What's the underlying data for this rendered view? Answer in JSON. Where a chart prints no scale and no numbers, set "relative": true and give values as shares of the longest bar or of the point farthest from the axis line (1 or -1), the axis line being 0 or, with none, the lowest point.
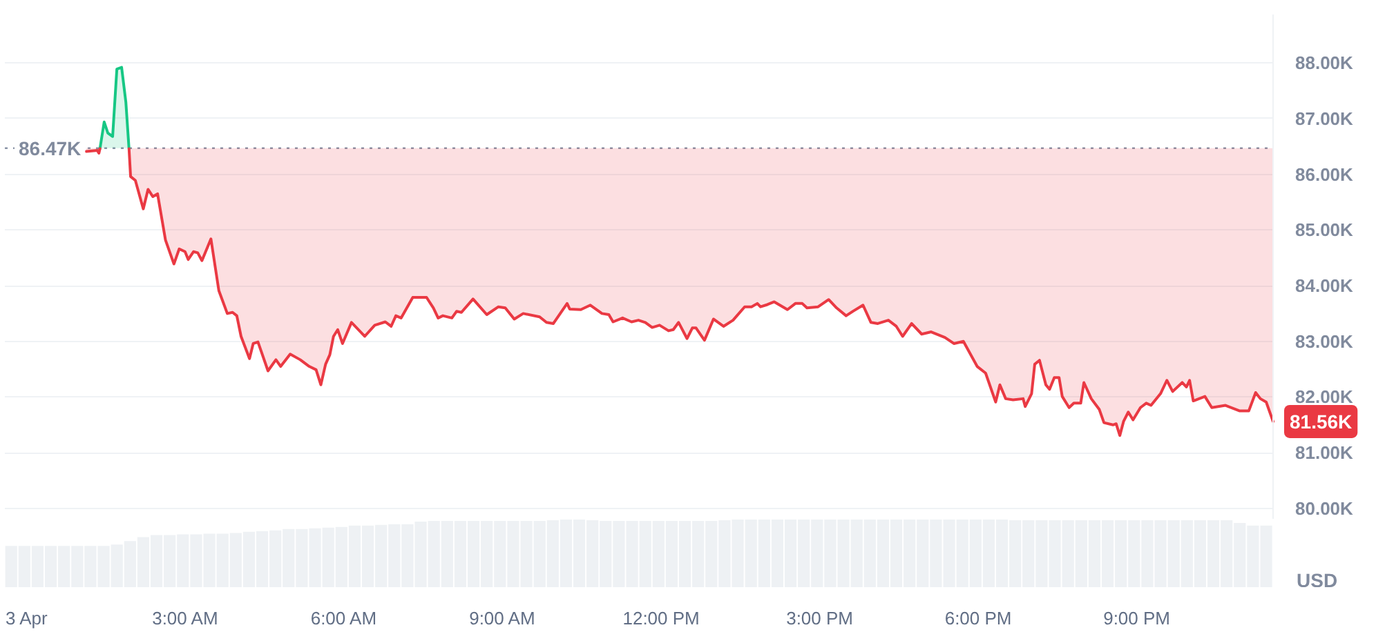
{
  "chart_data": [
    {
      "type": "line",
      "xlim": [
        -0.42,
        23.58
      ],
      "ylim": [
        79.8,
        88.87
      ],
      "yticks": [
        {
          "value": 80,
          "label": "80.00K"
        },
        {
          "value": 81,
          "label": "81.00K"
        },
        {
          "value": 82,
          "label": "82.00K"
        },
        {
          "value": 83,
          "label": "83.00K"
        },
        {
          "value": 84,
          "label": "84.00K"
        },
        {
          "value": 85,
          "label": "85.00K"
        },
        {
          "value": 86,
          "label": "86.00K"
        },
        {
          "value": 87,
          "label": "87.00K"
        },
        {
          "value": 88,
          "label": "88.00K"
        }
      ],
      "ylabel": "USD",
      "grid": "y",
      "tick_labels": "y",
      "ref_lines": [
        {
          "axis": "y",
          "value": 86.47,
          "label": "86.47K",
          "line_style": "dotted",
          "color": "#8a93a6"
        }
      ],
      "annotations": [
        {
          "text": "81.56K",
          "x": 23.58,
          "y": 81.56
        }
      ],
      "series": [
        {
          "color": "#16c784",
          "x": [
            1.38,
            1.46,
            1.53,
            1.62,
            1.7,
            1.79,
            1.87,
            1.93
          ],
          "values": [
            86.46,
            86.94,
            86.74,
            86.68,
            87.89,
            87.92,
            87.3,
            86.46
          ],
          "lower": [
            86.47,
            86.47,
            86.47,
            86.47,
            86.47,
            86.47,
            86.47,
            86.47
          ],
          "upper": [
            86.46,
            86.94,
            86.74,
            86.68,
            87.89,
            87.92,
            87.3,
            86.46
          ]
        },
        {
          "color": "#ea3943",
          "x": [
            1.12,
            1.33,
            1.36,
            1.38,
            1.6,
            1.93,
            1.96,
            2.05,
            2.2,
            2.29,
            2.38,
            2.47,
            2.62,
            2.78,
            2.88,
            2.99,
            3.05,
            3.15,
            3.23,
            3.31,
            3.48,
            3.63,
            3.79,
            3.89,
            3.97,
            4.05,
            4.21,
            4.28,
            4.37,
            4.56,
            4.71,
            4.8,
            4.98,
            5.17,
            5.34,
            5.47,
            5.56,
            5.65,
            5.73,
            5.8,
            5.88,
            5.97,
            6.14,
            6.39,
            6.58,
            6.78,
            6.89,
            6.98,
            7.08,
            7.3,
            7.56,
            7.69,
            7.78,
            7.87,
            8.04,
            8.13,
            8.22,
            8.44,
            8.7,
            8.92,
            9.05,
            9.22,
            9.39,
            9.7,
            9.83,
            9.96,
            10.09,
            10.22,
            10.27,
            10.48,
            10.66,
            10.88,
            11.01,
            11.09,
            11.27,
            11.44,
            11.57,
            11.7,
            11.83,
            11.97,
            12.14,
            12.23,
            12.33,
            12.49,
            12.59,
            12.66,
            12.82,
            12.99,
            13.18,
            13.36,
            13.58,
            13.71,
            13.82,
            13.88,
            14.01,
            14.14,
            14.39,
            14.54,
            14.67,
            14.76,
            14.97,
            15.17,
            15.32,
            15.5,
            15.63,
            15.82,
            15.97,
            16.1,
            16.3,
            16.45,
            16.57,
            16.74,
            16.93,
            17.11,
            17.37,
            17.54,
            17.72,
            17.98,
            18.14,
            18.33,
            18.41,
            18.52,
            18.66,
            18.85,
            18.89,
            19.01,
            19.07,
            19.16,
            19.28,
            19.35,
            19.44,
            19.53,
            19.59,
            19.72,
            19.81,
            19.94,
            20.0,
            20.14,
            20.29,
            20.38,
            20.55,
            20.61,
            20.68,
            20.75,
            20.84,
            20.93,
            21.07,
            21.18,
            21.27,
            21.45,
            21.57,
            21.68,
            21.86,
            21.94,
            22.0,
            22.07,
            22.29,
            22.42,
            22.68,
            22.95,
            23.12,
            23.25,
            23.34,
            23.45,
            23.58
          ],
          "values": [
            86.41,
            86.43,
            86.38,
            86.46,
            null,
            86.46,
            85.96,
            85.89,
            85.38,
            85.73,
            85.6,
            85.65,
            84.82,
            84.39,
            84.66,
            84.61,
            84.47,
            84.61,
            84.59,
            84.45,
            84.84,
            83.91,
            83.5,
            83.52,
            83.46,
            83.09,
            82.69,
            82.96,
            82.99,
            82.47,
            82.67,
            82.55,
            82.77,
            82.67,
            82.55,
            82.49,
            82.22,
            82.59,
            82.76,
            83.09,
            83.21,
            82.96,
            83.34,
            83.09,
            83.29,
            83.35,
            83.27,
            83.46,
            83.42,
            83.79,
            83.79,
            83.6,
            83.42,
            83.46,
            83.42,
            83.54,
            83.52,
            83.76,
            83.48,
            83.62,
            83.6,
            83.4,
            83.5,
            83.44,
            83.34,
            83.32,
            83.5,
            83.68,
            83.58,
            83.57,
            83.65,
            83.5,
            83.48,
            83.35,
            83.42,
            83.35,
            83.38,
            83.34,
            83.25,
            83.29,
            83.19,
            83.21,
            83.34,
            83.05,
            83.24,
            83.24,
            83.02,
            83.4,
            83.27,
            83.38,
            83.62,
            83.62,
            83.68,
            83.62,
            83.66,
            83.71,
            83.57,
            83.68,
            83.68,
            83.6,
            83.62,
            83.75,
            83.6,
            83.46,
            83.54,
            83.65,
            83.34,
            83.32,
            83.38,
            83.27,
            83.09,
            83.32,
            83.13,
            83.17,
            83.07,
            82.96,
            83.0,
            82.55,
            82.43,
            81.91,
            82.22,
            81.97,
            81.95,
            81.97,
            81.83,
            82.06,
            82.59,
            82.66,
            82.22,
            82.14,
            82.35,
            82.35,
            82.01,
            81.81,
            81.89,
            81.89,
            82.26,
            81.97,
            81.78,
            81.54,
            81.5,
            81.52,
            81.31,
            81.56,
            81.73,
            81.59,
            81.81,
            81.89,
            81.85,
            82.06,
            82.3,
            82.1,
            82.26,
            82.18,
            82.3,
            81.93,
            82.01,
            81.81,
            81.85,
            81.75,
            81.75,
            82.08,
            81.97,
            81.91,
            81.56
          ],
          "lower": [
            86.41,
            86.43,
            86.38,
            86.46,
            null,
            86.46,
            85.96,
            85.89,
            85.38,
            85.73,
            85.6,
            85.65,
            84.82,
            84.39,
            84.66,
            84.61,
            84.47,
            84.61,
            84.59,
            84.45,
            84.84,
            83.91,
            83.5,
            83.52,
            83.46,
            83.09,
            82.69,
            82.96,
            82.99,
            82.47,
            82.67,
            82.55,
            82.77,
            82.67,
            82.55,
            82.49,
            82.22,
            82.59,
            82.76,
            83.09,
            83.21,
            82.96,
            83.34,
            83.09,
            83.29,
            83.35,
            83.27,
            83.46,
            83.42,
            83.79,
            83.79,
            83.6,
            83.42,
            83.46,
            83.42,
            83.54,
            83.52,
            83.76,
            83.48,
            83.62,
            83.6,
            83.4,
            83.5,
            83.44,
            83.34,
            83.32,
            83.5,
            83.68,
            83.58,
            83.57,
            83.65,
            83.5,
            83.48,
            83.35,
            83.42,
            83.35,
            83.38,
            83.34,
            83.25,
            83.29,
            83.19,
            83.21,
            83.34,
            83.05,
            83.24,
            83.24,
            83.02,
            83.4,
            83.27,
            83.38,
            83.62,
            83.62,
            83.68,
            83.62,
            83.66,
            83.71,
            83.57,
            83.68,
            83.68,
            83.6,
            83.62,
            83.75,
            83.6,
            83.46,
            83.54,
            83.65,
            83.34,
            83.32,
            83.38,
            83.27,
            83.09,
            83.32,
            83.13,
            83.17,
            83.07,
            82.96,
            83.0,
            82.55,
            82.43,
            81.91,
            82.22,
            81.97,
            81.95,
            81.97,
            81.83,
            82.06,
            82.59,
            82.66,
            82.22,
            82.14,
            82.35,
            82.35,
            82.01,
            81.81,
            81.89,
            81.89,
            82.26,
            81.97,
            81.78,
            81.54,
            81.5,
            81.52,
            81.31,
            81.56,
            81.73,
            81.59,
            81.81,
            81.89,
            81.85,
            82.06,
            82.3,
            82.1,
            82.26,
            82.18,
            82.3,
            81.93,
            82.01,
            81.81,
            81.85,
            81.75,
            81.75,
            82.08,
            81.97,
            81.91,
            81.56
          ],
          "upper": [
            86.47,
            86.47,
            86.47,
            86.47,
            null,
            86.47,
            86.47,
            86.47,
            86.47,
            86.47,
            86.47,
            86.47,
            86.47,
            86.47,
            86.47,
            86.47,
            86.47,
            86.47,
            86.47,
            86.47,
            86.47,
            86.47,
            86.47,
            86.47,
            86.47,
            86.47,
            86.47,
            86.47,
            86.47,
            86.47,
            86.47,
            86.47,
            86.47,
            86.47,
            86.47,
            86.47,
            86.47,
            86.47,
            86.47,
            86.47,
            86.47,
            86.47,
            86.47,
            86.47,
            86.47,
            86.47,
            86.47,
            86.47,
            86.47,
            86.47,
            86.47,
            86.47,
            86.47,
            86.47,
            86.47,
            86.47,
            86.47,
            86.47,
            86.47,
            86.47,
            86.47,
            86.47,
            86.47,
            86.47,
            86.47,
            86.47,
            86.47,
            86.47,
            86.47,
            86.47,
            86.47,
            86.47,
            86.47,
            86.47,
            86.47,
            86.47,
            86.47,
            86.47,
            86.47,
            86.47,
            86.47,
            86.47,
            86.47,
            86.47,
            86.47,
            86.47,
            86.47,
            86.47,
            86.47,
            86.47,
            86.47,
            86.47,
            86.47,
            86.47,
            86.47,
            86.47,
            86.47,
            86.47,
            86.47,
            86.47,
            86.47,
            86.47,
            86.47,
            86.47,
            86.47,
            86.47,
            86.47,
            86.47,
            86.47,
            86.47,
            86.47,
            86.47,
            86.47,
            86.47,
            86.47,
            86.47,
            86.47,
            86.47,
            86.47,
            86.47,
            86.47,
            86.47,
            86.47,
            86.47,
            86.47,
            86.47,
            86.47,
            86.47,
            86.47,
            86.47,
            86.47,
            86.47,
            86.47,
            86.47,
            86.47,
            86.47,
            86.47,
            86.47,
            86.47,
            86.47,
            86.47,
            86.47,
            86.47,
            86.47,
            86.47,
            86.47,
            86.47,
            86.47,
            86.47,
            86.47,
            86.47,
            86.47,
            86.47,
            86.47,
            86.47,
            86.47,
            86.47,
            86.47,
            86.47,
            86.47,
            86.47,
            86.47,
            86.47,
            86.47,
            86.47
          ]
        }
      ]
    },
    {
      "type": "bar",
      "relative": true,
      "xlim": [
        -0.42,
        23.58
      ],
      "xticks": [
        {
          "value": 0,
          "label": "3 Apr"
        },
        {
          "value": 3,
          "label": "3:00 AM"
        },
        {
          "value": 6,
          "label": "6:00 AM"
        },
        {
          "value": 9,
          "label": "9:00 AM"
        },
        {
          "value": 12,
          "label": "12:00 PM"
        },
        {
          "value": 15,
          "label": "3:00 PM"
        },
        {
          "value": 18,
          "label": "6:00 PM"
        },
        {
          "value": 21,
          "label": "9:00 PM"
        }
      ],
      "color": "#eef1f4",
      "x": [
        -0.3,
        -0.05,
        0.2,
        0.45,
        0.7,
        0.95,
        1.2,
        1.45,
        1.7,
        1.95,
        2.2,
        2.45,
        2.7,
        2.95,
        3.2,
        3.45,
        3.7,
        3.95,
        4.2,
        4.45,
        4.7,
        4.95,
        5.2,
        5.45,
        5.7,
        5.95,
        6.2,
        6.45,
        6.7,
        6.95,
        7.2,
        7.45,
        7.7,
        7.95,
        8.2,
        8.45,
        8.7,
        8.95,
        9.2,
        9.45,
        9.7,
        9.95,
        10.2,
        10.45,
        10.7,
        10.95,
        11.2,
        11.45,
        11.7,
        11.95,
        12.2,
        12.45,
        12.7,
        12.95,
        13.2,
        13.45,
        13.7,
        13.95,
        14.2,
        14.45,
        14.7,
        14.95,
        15.2,
        15.45,
        15.7,
        15.95,
        16.2,
        16.45,
        16.7,
        16.95,
        17.2,
        17.45,
        17.7,
        17.95,
        18.2,
        18.45,
        18.7,
        18.95,
        19.2,
        19.45,
        19.7,
        19.95,
        20.2,
        20.45,
        20.7,
        20.95,
        21.2,
        21.45,
        21.7,
        21.95,
        22.2,
        22.45,
        22.7,
        22.95,
        23.2,
        23.45
      ],
      "values": [
        0.61,
        0.61,
        0.61,
        0.61,
        0.61,
        0.61,
        0.61,
        0.61,
        0.63,
        0.68,
        0.74,
        0.77,
        0.77,
        0.78,
        0.78,
        0.79,
        0.79,
        0.8,
        0.82,
        0.83,
        0.84,
        0.86,
        0.86,
        0.87,
        0.88,
        0.89,
        0.91,
        0.91,
        0.92,
        0.93,
        0.93,
        0.97,
        0.98,
        0.98,
        0.98,
        0.98,
        0.98,
        0.98,
        0.98,
        0.98,
        0.98,
        0.99,
        1,
        1,
        0.99,
        0.98,
        0.98,
        0.98,
        0.98,
        0.98,
        0.98,
        0.98,
        0.98,
        0.98,
        0.99,
        1,
        1,
        1,
        1,
        1,
        1,
        1,
        1,
        1,
        1,
        1,
        1,
        1,
        1,
        1,
        1,
        1,
        1,
        1,
        1,
        1,
        0.99,
        0.99,
        0.99,
        0.99,
        0.99,
        0.99,
        0.99,
        0.99,
        0.99,
        0.99,
        0.99,
        0.99,
        0.99,
        0.99,
        0.99,
        0.99,
        0.99,
        0.95,
        0.91,
        0.91
      ]
    }
  ]
}
